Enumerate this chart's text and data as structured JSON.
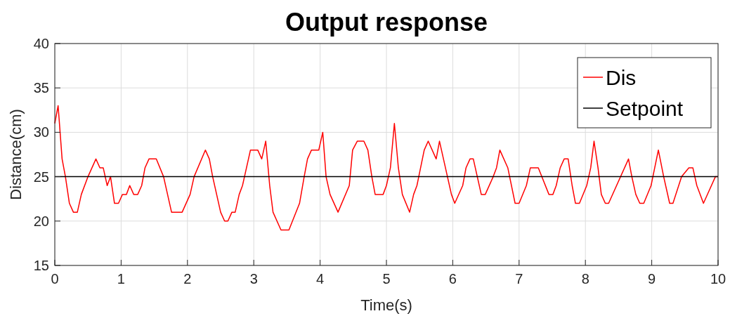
{
  "chart_data": {
    "type": "line",
    "title": "Output response",
    "xlabel": "Time(s)",
    "ylabel": "Distance(cm)",
    "xlim": [
      0,
      10
    ],
    "ylim": [
      15,
      40
    ],
    "xticks": [
      0,
      1,
      2,
      3,
      4,
      5,
      6,
      7,
      8,
      9,
      10
    ],
    "yticks": [
      15,
      20,
      25,
      30,
      35,
      40
    ],
    "grid": true,
    "legend": "top right",
    "marker": "none",
    "line_style": "solid",
    "series": [
      {
        "name": "Dis",
        "color": "#ff0000",
        "x": [
          0,
          0.05,
          0.11,
          0.16,
          0.22,
          0.28,
          0.34,
          0.4,
          0.5,
          0.62,
          0.68,
          0.73,
          0.79,
          0.84,
          0.9,
          0.96,
          1.02,
          1.08,
          1.13,
          1.19,
          1.25,
          1.31,
          1.36,
          1.42,
          1.53,
          1.64,
          1.76,
          1.92,
          2.04,
          2.1,
          2.27,
          2.33,
          2.38,
          2.5,
          2.56,
          2.61,
          2.67,
          2.72,
          2.78,
          2.83,
          2.95,
          3.06,
          3.12,
          3.18,
          3.24,
          3.29,
          3.41,
          3.53,
          3.69,
          3.76,
          3.81,
          3.87,
          3.98,
          4.04,
          4.09,
          4.15,
          4.27,
          4.44,
          4.49,
          4.56,
          4.66,
          4.72,
          4.78,
          4.83,
          4.95,
          5.0,
          5.06,
          5.12,
          5.18,
          5.24,
          5.35,
          5.41,
          5.46,
          5.57,
          5.63,
          5.75,
          5.8,
          5.92,
          5.98,
          6.03,
          6.15,
          6.2,
          6.26,
          6.31,
          6.37,
          6.43,
          6.49,
          6.61,
          6.66,
          6.71,
          6.83,
          6.94,
          7.0,
          7.11,
          7.17,
          7.29,
          7.45,
          7.51,
          7.56,
          7.62,
          7.68,
          7.74,
          7.8,
          7.85,
          7.91,
          8.02,
          8.08,
          8.13,
          8.19,
          8.24,
          8.3,
          8.35,
          8.65,
          8.7,
          8.76,
          8.82,
          8.88,
          8.99,
          9.1,
          9.18,
          9.27,
          9.32,
          9.45,
          9.56,
          9.62,
          9.68,
          9.78,
          9.96,
          10
        ],
        "values": [
          31,
          33,
          27,
          25,
          22,
          21,
          21,
          23,
          25,
          27,
          26,
          26,
          24,
          25,
          22,
          22,
          23,
          23,
          24,
          23,
          23,
          24,
          26,
          27,
          27,
          25,
          21,
          21,
          23,
          25,
          28,
          27,
          25,
          21,
          20,
          20,
          21,
          21,
          23,
          24,
          28,
          28,
          27,
          29,
          24,
          21,
          19,
          19,
          22,
          25,
          27,
          28,
          28,
          30,
          25,
          23,
          21,
          24,
          28,
          29,
          29,
          28,
          25,
          23,
          23,
          24,
          26,
          31,
          26,
          23,
          21,
          23,
          24,
          28,
          29,
          27,
          29,
          25,
          23,
          22,
          24,
          26,
          27,
          27,
          25,
          23,
          23,
          25,
          26,
          28,
          26,
          22,
          22,
          24,
          26,
          26,
          23,
          23,
          24,
          26,
          27,
          27,
          24,
          22,
          22,
          24,
          26,
          29,
          26,
          23,
          22,
          22,
          27,
          25,
          23,
          22,
          22,
          24,
          28,
          25,
          22,
          22,
          25,
          26,
          26,
          24,
          22,
          25,
          25
        ]
      },
      {
        "name": "Setpoint",
        "color": "#000000",
        "x": [
          0,
          10
        ],
        "values": [
          25,
          25
        ]
      }
    ]
  }
}
